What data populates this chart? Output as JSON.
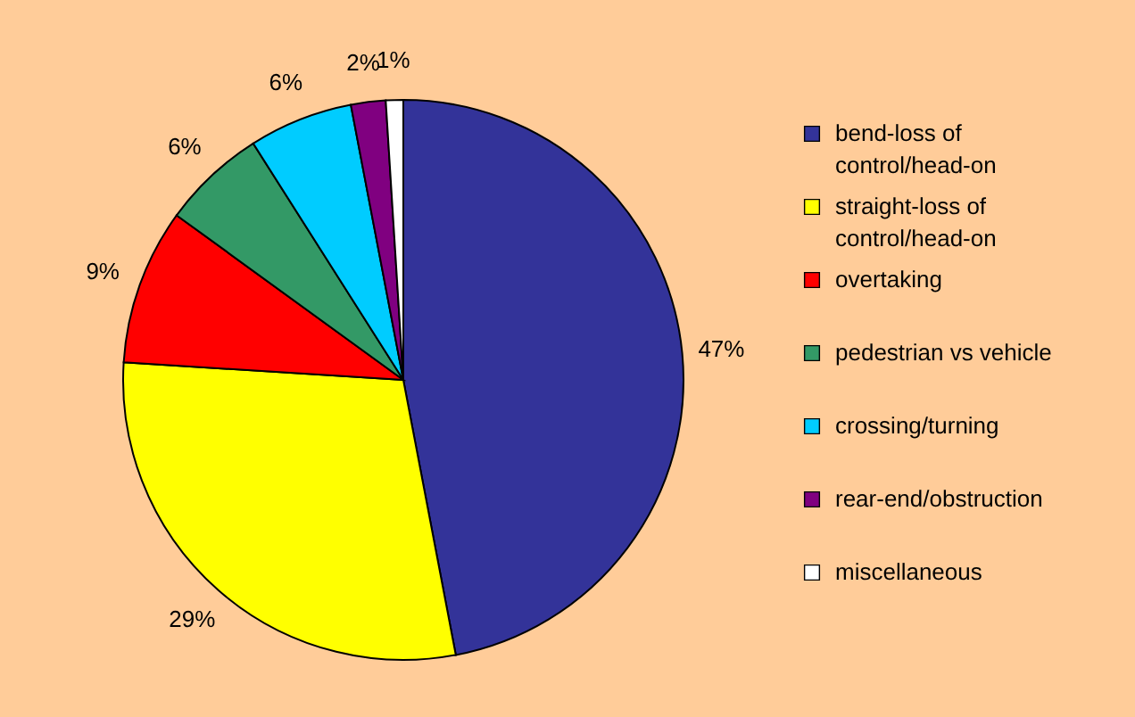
{
  "chart_data": {
    "type": "pie",
    "categories": [
      "bend-loss of control/head-on",
      "straight-loss of control/head-on",
      "overtaking",
      "pedestrian vs vehicle",
      "crossing/turning",
      "rear-end/obstruction",
      "miscellaneous"
    ],
    "values": [
      47,
      29,
      9,
      6,
      6,
      2,
      1
    ],
    "colors": [
      "#333399",
      "#ffff00",
      "#ff0000",
      "#339966",
      "#00ccff",
      "#800080",
      "#ffffff"
    ],
    "value_labels": [
      "47%",
      "29%",
      "9%",
      "6%",
      "6%",
      "2%",
      "1%"
    ],
    "legend": "right"
  }
}
